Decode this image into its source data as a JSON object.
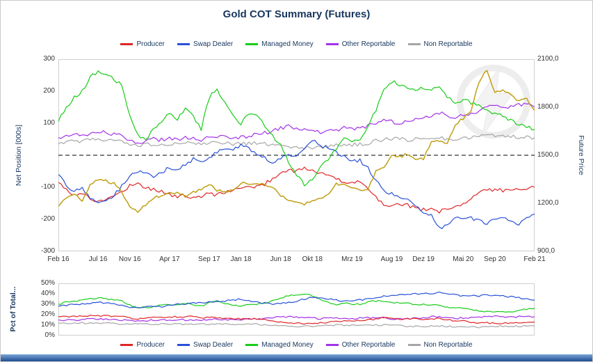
{
  "title": "Gold COT Summary (Futures)",
  "colors": {
    "title_text": "#17365d",
    "axis_text": "#333333",
    "plot_border": "#cfcfcf",
    "zero_line": "#000000",
    "bottom_bar_top": "#7aa6d9",
    "bottom_bar_bottom": "#1d4c8f",
    "watermark": "#e0e0e0"
  },
  "legend": {
    "items": [
      {
        "label": "Producer",
        "color": "#e02525"
      },
      {
        "label": "Swap Dealer",
        "color": "#2950d8"
      },
      {
        "label": "Managed Money",
        "color": "#18cc18"
      },
      {
        "label": "Other Reportable",
        "color": "#a431e8"
      },
      {
        "label": "Non Reportable",
        "color": "#a6a6a6"
      }
    ]
  },
  "chart_data": [
    {
      "type": "line",
      "title": "Gold COT Summary (Futures)",
      "ylabel_left": "Net Position [000s]",
      "ylabel_right": "Future Price",
      "ylim_left": [
        -300,
        300
      ],
      "ylim_right": [
        900,
        2100
      ],
      "yticks_left": [
        "300",
        "200",
        "100",
        "-100",
        "-200",
        "-300"
      ],
      "yticks_right": [
        "2100,0",
        "1800,0",
        "1500,0",
        "1200,0",
        "900,0"
      ],
      "x_tick_labels": [
        "Feb 16",
        "Jul 16",
        "Nov 16",
        "Apr 17",
        "Sep 17",
        "Jan 18",
        "Jun 18",
        "Okt 18",
        "Mrz 19",
        "Aug 19",
        "Dez 19",
        "Mai 20",
        "Sep 20",
        "Feb 21"
      ],
      "x_tick_months": [
        0,
        5,
        9,
        14,
        19,
        23,
        28,
        32,
        37,
        42,
        46,
        51,
        55,
        60
      ],
      "x_months_total": 60,
      "x_start": "Feb 16",
      "x_end": "Feb 21",
      "zero_line_dashed": true,
      "grid": false,
      "legend_position": "top",
      "series": [
        {
          "name": "Producer",
          "color": "#e02525",
          "axis": "left",
          "values": [
            -85,
            -105,
            -125,
            -118,
            -135,
            -145,
            -138,
            -128,
            -112,
            -95,
            -88,
            -100,
            -108,
            -112,
            -122,
            -130,
            -126,
            -134,
            -128,
            -120,
            -124,
            -114,
            -108,
            -104,
            -100,
            -96,
            -90,
            -72,
            -55,
            -45,
            -50,
            -42,
            -46,
            -56,
            -62,
            -72,
            -90,
            -86,
            -82,
            -100,
            -130,
            -152,
            -158,
            -150,
            -156,
            -164,
            -170,
            -166,
            -176,
            -170,
            -158,
            -150,
            -132,
            -116,
            -110,
            -106,
            -110,
            -106,
            -102,
            -104,
            -100
          ]
        },
        {
          "name": "Swap Dealer",
          "color": "#2950d8",
          "axis": "left",
          "values": [
            -60,
            -95,
            -112,
            -105,
            -135,
            -152,
            -142,
            -126,
            -96,
            -66,
            -50,
            -60,
            -66,
            -56,
            -36,
            -46,
            -26,
            -12,
            -26,
            -6,
            10,
            24,
            16,
            30,
            20,
            6,
            -10,
            -24,
            -10,
            6,
            -6,
            24,
            46,
            30,
            20,
            10,
            -6,
            -20,
            -16,
            -40,
            -80,
            -110,
            -120,
            -130,
            -140,
            -160,
            -175,
            -185,
            -228,
            -218,
            -200,
            -192,
            -196,
            -206,
            -214,
            -200,
            -196,
            -206,
            -214,
            -196,
            -184
          ]
        },
        {
          "name": "Managed Money",
          "color": "#18cc18",
          "axis": "left",
          "values": [
            105,
            150,
            182,
            200,
            242,
            264,
            250,
            238,
            218,
            120,
            60,
            52,
            80,
            100,
            130,
            112,
            150,
            120,
            82,
            180,
            208,
            160,
            120,
            100,
            130,
            120,
            92,
            62,
            30,
            -20,
            -60,
            -92,
            -75,
            -40,
            -10,
            20,
            60,
            42,
            52,
            90,
            142,
            200,
            230,
            220,
            214,
            200,
            210,
            205,
            208,
            180,
            162,
            172,
            164,
            154,
            140,
            130,
            120,
            110,
            96,
            90,
            80
          ]
        },
        {
          "name": "Other Reportable",
          "color": "#a431e8",
          "axis": "left",
          "values": [
            55,
            60,
            65,
            60,
            70,
            75,
            70,
            65,
            60,
            45,
            40,
            45,
            50,
            48,
            52,
            50,
            55,
            52,
            48,
            55,
            60,
            55,
            50,
            55,
            60,
            65,
            70,
            75,
            85,
            90,
            85,
            80,
            75,
            70,
            75,
            80,
            85,
            80,
            85,
            90,
            100,
            110,
            105,
            100,
            105,
            110,
            115,
            125,
            134,
            120,
            116,
            125,
            130,
            140,
            150,
            160,
            155,
            150,
            156,
            160,
            150
          ]
        },
        {
          "name": "Non Reportable",
          "color": "#a6a6a6",
          "axis": "left",
          "values": [
            35,
            40,
            45,
            42,
            48,
            50,
            48,
            45,
            42,
            35,
            32,
            33,
            35,
            34,
            36,
            35,
            38,
            36,
            34,
            38,
            40,
            37,
            35,
            36,
            38,
            37,
            35,
            32,
            30,
            28,
            25,
            22,
            24,
            26,
            28,
            30,
            33,
            32,
            34,
            38,
            45,
            50,
            52,
            50,
            48,
            50,
            52,
            55,
            57,
            50,
            48,
            52,
            55,
            58,
            60,
            62,
            60,
            58,
            56,
            58,
            55
          ]
        },
        {
          "name": "Future Price",
          "color": "#bfa014",
          "axis": "right",
          "values": [
            1180,
            1232,
            1258,
            1215,
            1310,
            1350,
            1340,
            1322,
            1270,
            1175,
            1152,
            1190,
            1235,
            1246,
            1266,
            1270,
            1242,
            1268,
            1290,
            1320,
            1280,
            1275,
            1282,
            1330,
            1322,
            1324,
            1316,
            1300,
            1252,
            1222,
            1200,
            1192,
            1216,
            1226,
            1250,
            1320,
            1320,
            1295,
            1282,
            1285,
            1400,
            1425,
            1505,
            1490,
            1510,
            1465,
            1480,
            1580,
            1590,
            1580,
            1690,
            1730,
            1772,
            1960,
            2030,
            1890,
            1900,
            1878,
            1840,
            1850,
            1780
          ]
        }
      ]
    },
    {
      "type": "line",
      "ylabel": "Pct of Total...",
      "ylim": [
        0,
        50
      ],
      "yticks": [
        "50%",
        "40%",
        "30%",
        "20%",
        "10%",
        "0%"
      ],
      "x_months_total": 60,
      "grid": false,
      "legend_position": "bottom",
      "series": [
        {
          "name": "Producer",
          "color": "#e02525",
          "values": [
            18,
            18,
            19,
            18,
            19,
            19,
            19,
            18,
            18,
            17,
            16,
            17,
            17,
            17,
            18,
            18,
            18,
            18,
            17,
            17,
            17,
            16,
            16,
            16,
            16,
            16,
            15,
            14,
            13,
            12,
            12,
            11,
            12,
            12,
            13,
            14,
            14,
            14,
            14,
            15,
            16,
            17,
            17,
            16,
            16,
            16,
            16,
            16,
            16,
            15,
            14,
            14,
            13,
            12,
            12,
            12,
            12,
            12,
            12,
            13,
            13
          ]
        },
        {
          "name": "Swap Dealer",
          "color": "#2950d8",
          "values": [
            28,
            29,
            30,
            30,
            31,
            32,
            31,
            30,
            29,
            27,
            26,
            27,
            28,
            28,
            29,
            30,
            30,
            31,
            31,
            32,
            33,
            33,
            34,
            35,
            33,
            32,
            31,
            30,
            31,
            32,
            33,
            35,
            37,
            36,
            35,
            34,
            33,
            33,
            34,
            35,
            36,
            38,
            38,
            39,
            39,
            40,
            40,
            40,
            41,
            40,
            39,
            38,
            38,
            38,
            39,
            38,
            38,
            37,
            36,
            35,
            34
          ]
        },
        {
          "name": "Managed Money",
          "color": "#18cc18",
          "values": [
            30,
            32,
            33,
            34,
            35,
            36,
            35,
            34,
            33,
            29,
            27,
            27,
            28,
            29,
            30,
            29,
            31,
            30,
            28,
            32,
            33,
            31,
            29,
            28,
            30,
            30,
            31,
            33,
            36,
            38,
            39,
            40,
            38,
            35,
            32,
            30,
            31,
            30,
            30,
            32,
            33,
            33,
            32,
            31,
            31,
            30,
            30,
            29,
            29,
            27,
            26,
            26,
            25,
            24,
            23,
            23,
            23,
            23,
            24,
            25,
            26
          ]
        },
        {
          "name": "Other Reportable",
          "color": "#a431e8",
          "values": [
            15,
            15,
            15,
            15,
            16,
            16,
            16,
            15,
            15,
            14,
            14,
            14,
            15,
            15,
            15,
            15,
            15,
            15,
            15,
            15,
            16,
            15,
            15,
            15,
            16,
            16,
            16,
            17,
            18,
            18,
            18,
            17,
            17,
            16,
            17,
            17,
            17,
            16,
            17,
            17,
            17,
            17,
            16,
            16,
            16,
            17,
            17,
            18,
            18,
            17,
            16,
            17,
            17,
            18,
            18,
            19,
            18,
            18,
            18,
            19,
            18
          ]
        },
        {
          "name": "Non Reportable",
          "color": "#a6a6a6",
          "values": [
            12,
            12,
            12,
            12,
            12,
            12,
            12,
            12,
            11,
            11,
            11,
            11,
            11,
            11,
            11,
            11,
            11,
            11,
            11,
            11,
            11,
            11,
            11,
            11,
            11,
            11,
            10,
            10,
            10,
            9,
            9,
            9,
            9,
            9,
            10,
            10,
            10,
            10,
            10,
            10,
            10,
            10,
            10,
            10,
            9,
            9,
            9,
            9,
            9,
            9,
            8,
            8,
            8,
            8,
            8,
            9,
            9,
            9,
            9,
            9,
            9
          ]
        }
      ]
    }
  ]
}
